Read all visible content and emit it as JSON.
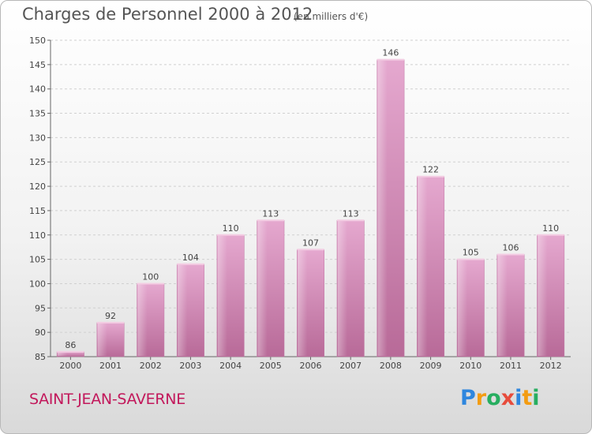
{
  "chart_data": {
    "type": "bar",
    "title": "Charges de Personnel 2000 à 2012",
    "subtitle": "(en milliers d'€)",
    "categories": [
      "2000",
      "2001",
      "2002",
      "2003",
      "2004",
      "2005",
      "2006",
      "2007",
      "2008",
      "2009",
      "2010",
      "2011",
      "2012"
    ],
    "values": [
      86,
      92,
      100,
      104,
      110,
      113,
      107,
      113,
      146,
      122,
      105,
      106,
      110
    ],
    "data_labels": [
      "86",
      "92",
      "100",
      "104",
      "110",
      "113",
      "107",
      "113",
      "146",
      "122",
      "105",
      "106",
      "110"
    ],
    "ylim": [
      85,
      150
    ],
    "yticks": [
      85,
      90,
      95,
      100,
      105,
      110,
      115,
      120,
      125,
      130,
      135,
      140,
      145,
      150
    ],
    "xlabel": "",
    "ylabel": "",
    "grid": true,
    "legend": "none",
    "bar_color": "#d98bb8"
  },
  "commune": "SAINT-JEAN-SAVERNE",
  "logo": {
    "letters": [
      "P",
      "r",
      "o",
      "x",
      "i",
      "t",
      "i"
    ],
    "colors": [
      "#2e86de",
      "#f39c12",
      "#27ae60",
      "#e74c3c",
      "#2e86de",
      "#f39c12",
      "#27ae60"
    ]
  }
}
